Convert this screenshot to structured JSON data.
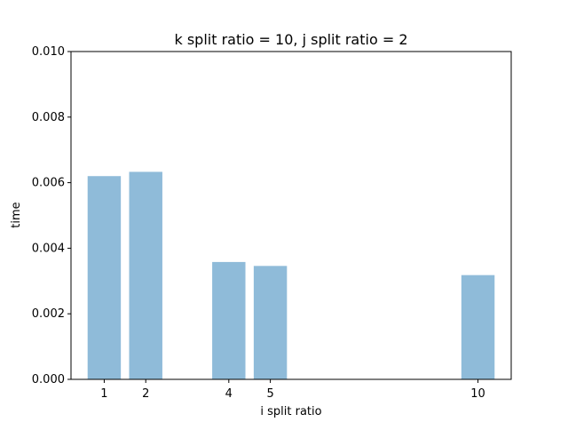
{
  "chart_data": {
    "type": "bar",
    "title": "k split ratio = 10, j split ratio = 2",
    "xlabel": "i split ratio",
    "ylabel": "time",
    "x": [
      1,
      2,
      4,
      5,
      10
    ],
    "values": [
      0.0062,
      0.00633,
      0.00358,
      0.00346,
      0.00318
    ],
    "xticks": [
      1,
      2,
      4,
      5,
      10
    ],
    "xtick_labels": [
      "1",
      "2",
      "4",
      "5",
      "10"
    ],
    "yticks": [
      "0.000",
      "0.002",
      "0.004",
      "0.006",
      "0.008",
      "0.010"
    ],
    "ylim": [
      0,
      0.01
    ],
    "xlim": [
      0.2,
      10.8
    ],
    "bar_width": 0.8,
    "bar_color": "#8fbbd9",
    "grid": false,
    "legend": "none"
  }
}
